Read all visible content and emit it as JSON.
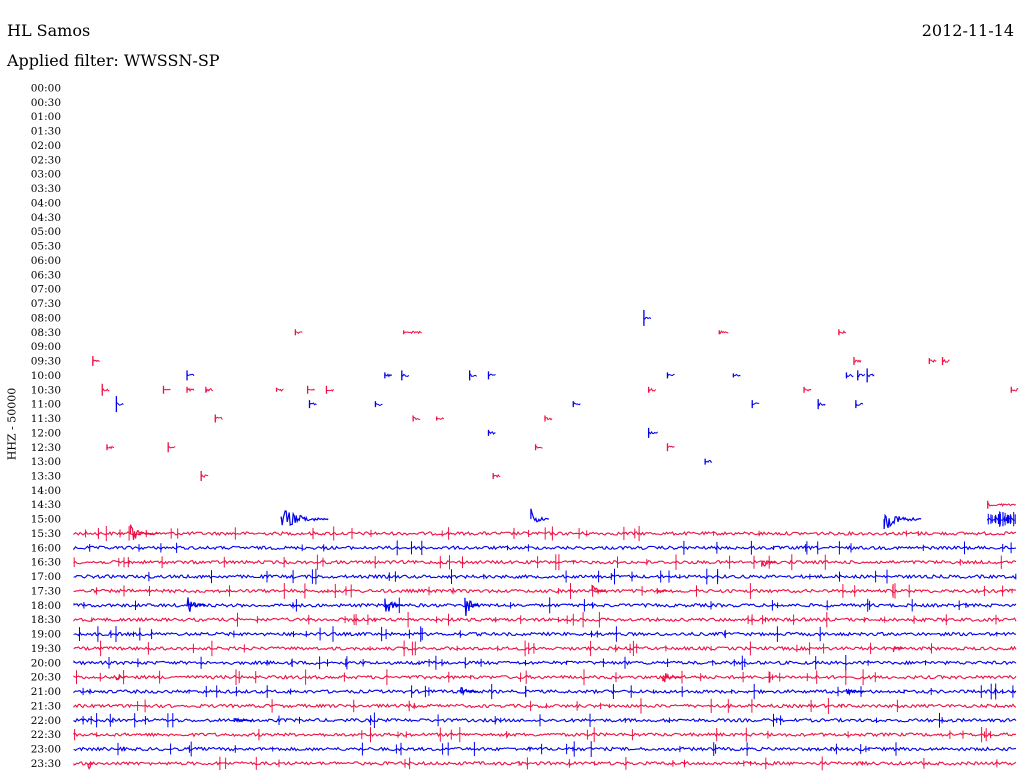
{
  "header": {
    "station": "HL Samos",
    "date": "2012-11-14",
    "filter": "Applied filter: WWSSN-SP"
  },
  "colors": {
    "trace_a": "#0000ee",
    "trace_b": "#ee1144"
  },
  "chart_data": {
    "type": "line",
    "ylabel": "HHZ - 50000",
    "time_labels": [
      "00:00",
      "00:30",
      "01:00",
      "01:30",
      "02:00",
      "02:30",
      "03:00",
      "03:30",
      "04:00",
      "04:30",
      "05:00",
      "05:30",
      "06:00",
      "06:30",
      "07:00",
      "07:30",
      "08:00",
      "08:30",
      "09:00",
      "09:30",
      "10:00",
      "10:30",
      "11:00",
      "11:30",
      "12:00",
      "12:30",
      "13:00",
      "13:30",
      "14:00",
      "14:30",
      "15:00",
      "15:30",
      "16:00",
      "16:30",
      "17:00",
      "17:30",
      "18:00",
      "18:30",
      "19:00",
      "19:30",
      "20:00",
      "20:30",
      "21:00",
      "21:30",
      "22:00",
      "22:30",
      "23:00",
      "23:30"
    ],
    "trace_start_row": 30,
    "continuous_from_row": 31,
    "events": [
      {
        "row": 16,
        "x": 0.605,
        "amp": 8
      },
      {
        "row": 17,
        "x": 0.235,
        "amp": 3
      },
      {
        "row": 17,
        "x": 0.35,
        "amp": 2,
        "w": 0.02
      },
      {
        "row": 17,
        "x": 0.685,
        "amp": 2,
        "w": 0.01
      },
      {
        "row": 17,
        "x": 0.812,
        "amp": 3
      },
      {
        "row": 19,
        "x": 0.02,
        "amp": 5
      },
      {
        "row": 19,
        "x": 0.828,
        "amp": 4
      },
      {
        "row": 19,
        "x": 0.908,
        "amp": 3
      },
      {
        "row": 19,
        "x": 0.922,
        "amp": 4
      },
      {
        "row": 20,
        "x": 0.12,
        "amp": 5
      },
      {
        "row": 20,
        "x": 0.33,
        "amp": 3
      },
      {
        "row": 20,
        "x": 0.348,
        "amp": 5
      },
      {
        "row": 20,
        "x": 0.42,
        "amp": 5
      },
      {
        "row": 20,
        "x": 0.44,
        "amp": 4
      },
      {
        "row": 20,
        "x": 0.63,
        "amp": 3
      },
      {
        "row": 20,
        "x": 0.7,
        "amp": 2
      },
      {
        "row": 20,
        "x": 0.82,
        "amp": 3
      },
      {
        "row": 20,
        "x": 0.832,
        "amp": 5
      },
      {
        "row": 20,
        "x": 0.842,
        "amp": 7
      },
      {
        "row": 21,
        "x": 0.03,
        "amp": 6
      },
      {
        "row": 21,
        "x": 0.095,
        "amp": 4
      },
      {
        "row": 21,
        "x": 0.12,
        "amp": 3
      },
      {
        "row": 21,
        "x": 0.14,
        "amp": 3
      },
      {
        "row": 21,
        "x": 0.215,
        "amp": 2
      },
      {
        "row": 21,
        "x": 0.248,
        "amp": 4
      },
      {
        "row": 21,
        "x": 0.268,
        "amp": 4
      },
      {
        "row": 21,
        "x": 0.61,
        "amp": 3
      },
      {
        "row": 21,
        "x": 0.775,
        "amp": 3
      },
      {
        "row": 21,
        "x": 0.995,
        "amp": 3
      },
      {
        "row": 22,
        "x": 0.045,
        "amp": 8
      },
      {
        "row": 22,
        "x": 0.25,
        "amp": 4
      },
      {
        "row": 22,
        "x": 0.32,
        "amp": 3
      },
      {
        "row": 22,
        "x": 0.53,
        "amp": 3
      },
      {
        "row": 22,
        "x": 0.72,
        "amp": 4
      },
      {
        "row": 22,
        "x": 0.79,
        "amp": 5
      },
      {
        "row": 22,
        "x": 0.83,
        "amp": 4
      },
      {
        "row": 23,
        "x": 0.15,
        "amp": 4
      },
      {
        "row": 23,
        "x": 0.36,
        "amp": 3
      },
      {
        "row": 23,
        "x": 0.385,
        "amp": 2
      },
      {
        "row": 23,
        "x": 0.5,
        "amp": 3
      },
      {
        "row": 24,
        "x": 0.44,
        "amp": 3
      },
      {
        "row": 24,
        "x": 0.61,
        "amp": 5,
        "w": 0.01
      },
      {
        "row": 25,
        "x": 0.035,
        "amp": 3
      },
      {
        "row": 25,
        "x": 0.1,
        "amp": 5
      },
      {
        "row": 25,
        "x": 0.49,
        "amp": 3
      },
      {
        "row": 25,
        "x": 0.63,
        "amp": 4
      },
      {
        "row": 26,
        "x": 0.67,
        "amp": 3
      },
      {
        "row": 27,
        "x": 0.135,
        "amp": 5
      },
      {
        "row": 27,
        "x": 0.445,
        "amp": 3
      },
      {
        "row": 29,
        "x": 0.97,
        "amp": 4,
        "w": 0.03
      }
    ]
  }
}
